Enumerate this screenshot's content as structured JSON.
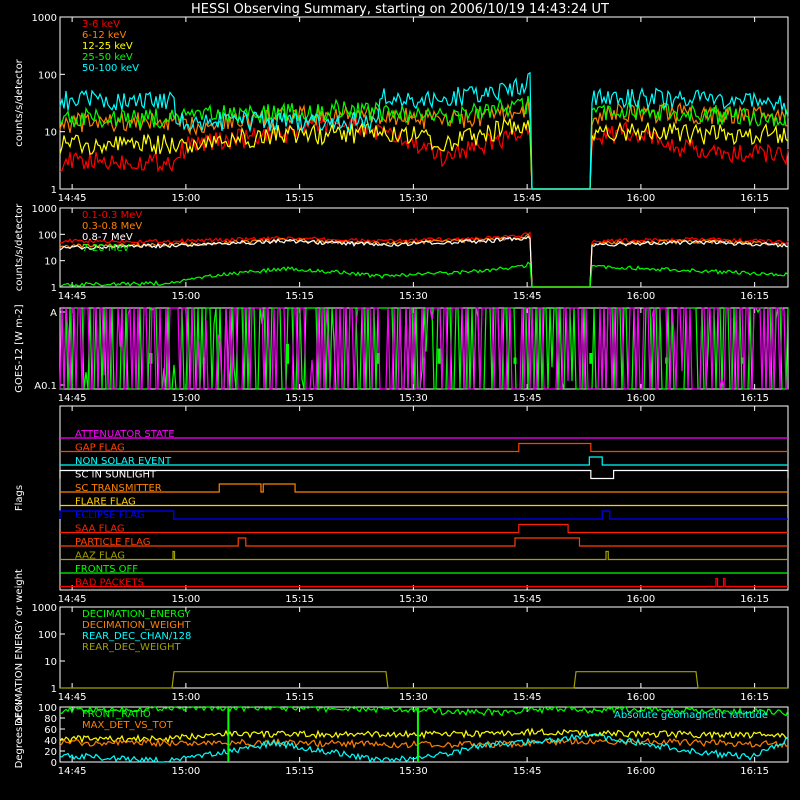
{
  "title": "HESSI Observing Summary, starting on 2006/10/19 14:43:24 UT",
  "colors": {
    "white": "#ffffff",
    "red": "#ff0000",
    "orange": "#ff8000",
    "yellow": "#ffff00",
    "green": "#00ff00",
    "cyan": "#00ffff",
    "magenta": "#ff00ff",
    "blue": "#0000ff",
    "olive": "#a0a000",
    "darkgold": "#ffd000",
    "orangered": "#ff4000"
  },
  "time_ticks": [
    "14:45",
    "15:00",
    "15:15",
    "15:30",
    "15:45",
    "16:00",
    "16:15"
  ],
  "chart_data": [
    {
      "id": "rates",
      "type": "line",
      "ylabel": "counts/s/detector",
      "ylim": [
        1,
        1000
      ],
      "yscale": "log",
      "yticks": [
        "1",
        "10",
        "100",
        "1000"
      ],
      "legend": "top-left",
      "x_unit": "minutes after 14:43:24 UT",
      "gaps": [
        [
          62,
          70
        ]
      ],
      "series": [
        {
          "name": "3-6 keV",
          "color": "#ff0000",
          "x": [
            0,
            15,
            17,
            30,
            36,
            45,
            50,
            56,
            62,
            70,
            75,
            80,
            85,
            96
          ],
          "y": [
            3,
            3,
            6,
            9,
            15,
            7,
            3.5,
            6,
            10,
            8,
            10,
            6,
            4,
            4
          ]
        },
        {
          "name": "6-12 keV",
          "color": "#ff8000",
          "x": [
            0,
            15,
            17,
            30,
            36,
            45,
            50,
            56,
            62,
            70,
            75,
            85,
            96
          ],
          "y": [
            14,
            15,
            13,
            18,
            20,
            18,
            15,
            18,
            25,
            18,
            22,
            20,
            18
          ]
        },
        {
          "name": "12-25 keV",
          "color": "#ffff00",
          "x": [
            0,
            15,
            17,
            30,
            36,
            45,
            50,
            56,
            62,
            70,
            75,
            85,
            96
          ],
          "y": [
            6,
            6,
            6,
            9,
            9,
            10,
            6,
            9,
            14,
            10,
            10,
            9,
            9
          ]
        },
        {
          "name": "25-50 keV",
          "color": "#00ff00",
          "x": [
            0,
            15,
            17,
            30,
            36,
            45,
            50,
            56,
            62,
            70,
            75,
            85,
            96
          ],
          "y": [
            17,
            17,
            18,
            22,
            24,
            20,
            18,
            22,
            30,
            20,
            25,
            20,
            18
          ]
        },
        {
          "name": "50-100 keV",
          "color": "#00ffff",
          "x": [
            0,
            15,
            15.1,
            30,
            42,
            42.1,
            50,
            56,
            61,
            62,
            70,
            75,
            85,
            85.1,
            96
          ],
          "y": [
            35,
            35,
            15,
            15,
            15,
            38,
            38,
            45,
            60,
            85,
            38,
            38,
            38,
            40,
            30
          ]
        }
      ]
    },
    {
      "id": "rates_high",
      "type": "line",
      "ylabel": "counts/s/detector",
      "ylim": [
        1,
        1000
      ],
      "yscale": "log",
      "yticks": [
        "1",
        "10",
        "100",
        "1000"
      ],
      "legend": "top-left",
      "gaps": [
        [
          62,
          70
        ]
      ],
      "series": [
        {
          "name": "0.1-0.3 MeV",
          "color": "#ff0000",
          "x": [
            0,
            15,
            30,
            42,
            56,
            61,
            62,
            70,
            85,
            96
          ],
          "y": [
            55,
            55,
            70,
            55,
            70,
            90,
            110,
            55,
            65,
            50
          ]
        },
        {
          "name": "0.3-0.8 MeV",
          "color": "#ff8000",
          "x": [
            0,
            15,
            30,
            42,
            56,
            61,
            62,
            70,
            85,
            96
          ],
          "y": [
            35,
            40,
            60,
            45,
            60,
            75,
            90,
            45,
            55,
            40
          ]
        },
        {
          "name": "0.8-7 MeV",
          "color": "#ffffff",
          "x": [
            0,
            15,
            30,
            42,
            56,
            61,
            62,
            70,
            85,
            96
          ],
          "y": [
            30,
            38,
            55,
            40,
            55,
            70,
            80,
            40,
            50,
            38
          ]
        },
        {
          "name": "7-20 MeV",
          "color": "#00ff00",
          "x": [
            0,
            15,
            20,
            30,
            42,
            56,
            61,
            62,
            70,
            85,
            96
          ],
          "y": [
            1.2,
            1.4,
            2.5,
            5,
            2.5,
            4,
            6,
            8,
            6,
            4,
            3
          ]
        }
      ]
    },
    {
      "id": "goes",
      "type": "line",
      "ylabel": "GOES-12 [W m-2]",
      "ylim": [
        0.1,
        1
      ],
      "yticks": [
        "A0.1",
        "A"
      ],
      "series": [
        {
          "name": "",
          "color": "#00ff00",
          "x": [
            0,
            96
          ],
          "y": [
            0.38,
            0.38
          ],
          "spikes_x": [
            12,
            19,
            30,
            42,
            48,
            50,
            60,
            70,
            80,
            90
          ],
          "spikes_y": [
            0.5,
            0.45,
            0.6,
            0.5,
            0.45,
            0.55,
            0.45,
            0.5,
            0.45,
            0.45
          ]
        },
        {
          "name": "",
          "color": "#ff00ff",
          "x": [
            0,
            10,
            20,
            30,
            40,
            50,
            60,
            70,
            80,
            90,
            96
          ],
          "y": [
            0.28,
            0.3,
            0.25,
            0.22,
            0.2,
            0.18,
            0.17,
            0.18,
            0.17,
            0.17,
            0.17
          ]
        }
      ]
    },
    {
      "id": "flags",
      "type": "line",
      "ylabel": "Flags",
      "flags": [
        {
          "name": "ATTENUATOR STATE",
          "color": "#ff00ff",
          "on": []
        },
        {
          "name": "GAP FLAG",
          "color": "#ff4000",
          "on": [
            [
              60.5,
              70
            ]
          ]
        },
        {
          "name": "NON SOLAR EVENT",
          "color": "#00ffff",
          "on": [
            [
              69.8,
              71.5
            ]
          ]
        },
        {
          "name": "SC IN SUNLIGHT",
          "color": "#ffffff",
          "on": [
            [
              0,
              70
            ],
            [
              73,
              96
            ]
          ]
        },
        {
          "name": "SC TRANSMITTER",
          "color": "#ff8000",
          "on": [
            [
              21,
              26.5
            ],
            [
              26.8,
              31
            ]
          ]
        },
        {
          "name": "FLARE FLAG",
          "color": "#ffd000",
          "on": []
        },
        {
          "name": "ECLIPSE FLAG",
          "color": "#0000ff",
          "on": [
            [
              0,
              15
            ],
            [
              71.5,
              72.5
            ]
          ]
        },
        {
          "name": "SAA FLAG",
          "color": "#ff2000",
          "on": [
            [
              60.5,
              67
            ]
          ]
        },
        {
          "name": "PARTICLE FLAG",
          "color": "#ff4000",
          "on": [
            [
              23.5,
              24.5
            ],
            [
              60,
              68.5
            ]
          ]
        },
        {
          "name": "AAZ FLAG",
          "color": "#a0a000",
          "on": [
            [
              14.9,
              15.1
            ],
            [
              72,
              72.3
            ]
          ]
        },
        {
          "name": "FRONTS OFF",
          "color": "#00ff00",
          "on": []
        },
        {
          "name": "BAD PACKETS",
          "color": "#ff0000",
          "on": [
            [
              86.5,
              86.7
            ],
            [
              87.5,
              87.7
            ]
          ]
        }
      ]
    },
    {
      "id": "decimation",
      "type": "line",
      "ylabel": "DECIMATION ENERGY or weight",
      "ylim": [
        1,
        1000
      ],
      "yscale": "log",
      "yticks": [
        "1",
        "10",
        "100",
        "1000"
      ],
      "legend": "top-left",
      "series": [
        {
          "name": "DECIMATION_ENERGY",
          "color": "#00ff00",
          "x": [],
          "y": []
        },
        {
          "name": "DECIMATION_WEIGHT",
          "color": "#ff8000",
          "x": [],
          "y": []
        },
        {
          "name": "REAR_DEC_CHAN/128",
          "color": "#00ffff",
          "x": [],
          "y": []
        },
        {
          "name": "REAR_DEC_WEIGHT",
          "color": "#a0a000",
          "x": [
            0,
            15,
            15,
            43,
            43,
            68,
            68,
            84,
            84,
            96
          ],
          "y": [
            1,
            1,
            4,
            4,
            1,
            1,
            4,
            4,
            1,
            1
          ]
        }
      ]
    },
    {
      "id": "front_ratio",
      "type": "line",
      "ylabel": "Degrees or %",
      "ylim": [
        0,
        100
      ],
      "yticks": [
        "0",
        "20",
        "40",
        "60",
        "80",
        "100"
      ],
      "legend": "top-left",
      "right_label": "Absolute geomagnetic latitude",
      "series": [
        {
          "name": "FRONT_RATIO",
          "color": "#00ff00",
          "x": [
            0,
            10,
            15,
            20,
            30,
            40,
            50,
            60,
            62,
            70,
            75,
            85,
            96
          ],
          "y": [
            94,
            96,
            100,
            99,
            98,
            96,
            92,
            90,
            95,
            95,
            96,
            92,
            90
          ]
        },
        {
          "name": "",
          "color": "#ffff00",
          "x": [
            0,
            15,
            20,
            30,
            42,
            50,
            60,
            62,
            70,
            85,
            96
          ],
          "y": [
            42,
            42,
            52,
            50,
            50,
            50,
            52,
            55,
            52,
            50,
            48
          ]
        },
        {
          "name": "MAX_DET_VS_TOT",
          "color": "#ff8000",
          "x": [
            0,
            15,
            30,
            42,
            60,
            62,
            70,
            85,
            96
          ],
          "y": [
            35,
            35,
            35,
            32,
            32,
            35,
            38,
            35,
            32
          ]
        },
        {
          "name": "Absolute geomagnetic latitude",
          "color": "#00ffff",
          "x": [
            0,
            7,
            14,
            21,
            28,
            35,
            42,
            49,
            56,
            63,
            70,
            77,
            84,
            91,
            96
          ],
          "y": [
            12,
            7,
            1,
            15,
            35,
            20,
            2,
            10,
            30,
            38,
            48,
            34,
            18,
            10,
            42
          ]
        },
        {
          "name": "",
          "color": "#00ff00",
          "type": "vlines",
          "x": [
            22.2,
            47.2
          ]
        }
      ]
    }
  ]
}
